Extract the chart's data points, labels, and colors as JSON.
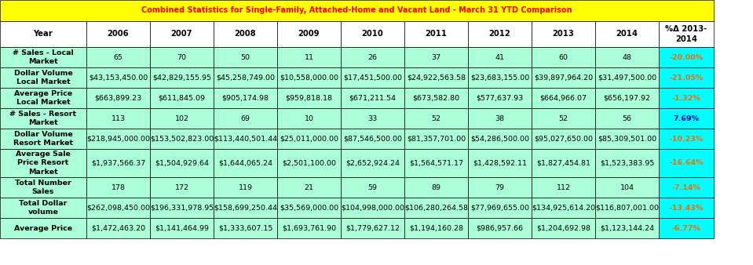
{
  "title": "Combined Statistics for Single-Family, Attached-Home and Vacant Land - March 31 YTD Comparison",
  "title_bg": "#FFFF00",
  "title_color": "#FF0000",
  "header_bg": "#FFFFFF",
  "header_color": "#000000",
  "data_bg": "#AAFFD8",
  "last_col_bg": "#00FFFF",
  "last_col_color_neg": "#FF6600",
  "last_col_color_pos": "#0000CC",
  "border_color": "#000000",
  "columns": [
    "Year",
    "2006",
    "2007",
    "2008",
    "2009",
    "2010",
    "2011",
    "2012",
    "2013",
    "2014",
    "%Δ 2013-\n2014"
  ],
  "rows": [
    [
      "# Sales - Local\nMarket",
      "65",
      "70",
      "50",
      "11",
      "26",
      "37",
      "41",
      "60",
      "48",
      "-20.00%"
    ],
    [
      "Dollar Volume\nLocal Market",
      "$43,153,450.00",
      "$42,829,155.95",
      "$45,258,749.00",
      "$10,558,000.00",
      "$17,451,500.00",
      "$24,922,563.58",
      "$23,683,155.00",
      "$39,897,964.20",
      "$31,497,500.00",
      "-21.05%"
    ],
    [
      "Average Price\nLocal Market",
      "$663,899.23",
      "$611,845.09",
      "$905,174.98",
      "$959,818.18",
      "$671,211.54",
      "$673,582.80",
      "$577,637.93",
      "$664,966.07",
      "$656,197.92",
      "-1.32%"
    ],
    [
      "# Sales - Resort\nMarket",
      "113",
      "102",
      "69",
      "10",
      "33",
      "52",
      "38",
      "52",
      "56",
      "7.69%"
    ],
    [
      "Dollar Volume\nResort Market",
      "$218,945,000.00",
      "$153,502,823.00",
      "$113,440,501.44",
      "$25,011,000.00",
      "$87,546,500.00",
      "$81,357,701.00",
      "$54,286,500.00",
      "$95,027,650.00",
      "$85,309,501.00",
      "-10.23%"
    ],
    [
      "Average Sale\nPrice Resort\nMarket",
      "$1,937,566.37",
      "$1,504,929.64",
      "$1,644,065.24",
      "$2,501,100.00",
      "$2,652,924.24",
      "$1,564,571.17",
      "$1,428,592.11",
      "$1,827,454.81",
      "$1,523,383.95",
      "-16.64%"
    ],
    [
      "Total Number\nSales",
      "178",
      "172",
      "119",
      "21",
      "59",
      "89",
      "79",
      "112",
      "104",
      "-7.14%"
    ],
    [
      "Total Dollar\nvolume",
      "$262,098,450.00",
      "$196,331,978.95",
      "$158,699,250.44",
      "$35,569,000.00",
      "$104,998,000.00",
      "$106,280,264.58",
      "$77,969,655.00",
      "$134,925,614.20",
      "$116,807,001.00",
      "-13.43%"
    ],
    [
      "Average Price",
      "$1,472,463.20",
      "$1,141,464.99",
      "$1,333,607.15",
      "$1,693,761.90",
      "$1,779,627.12",
      "$1,194,160.28",
      "$986,957.66",
      "$1,204,692.98",
      "$1,123,144.24",
      "-6.77%"
    ]
  ],
  "last_col_signs": [
    "-",
    "-",
    "-",
    "+",
    "-",
    "-",
    "-",
    "-",
    "-"
  ],
  "fig_width": 9.59,
  "fig_height": 3.38,
  "dpi": 100
}
